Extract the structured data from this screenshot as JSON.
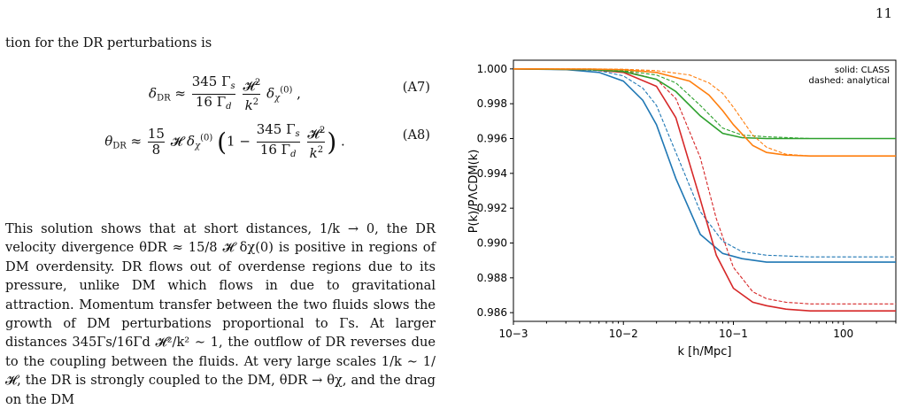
{
  "page_number": "11",
  "text": {
    "intro": "tion for the DR perturbations is",
    "eq_a7_label": "(A7)",
    "eq_a8_label": "(A8)",
    "paragraph": "This solution shows that at short distances, 1/k → 0, the DR velocity divergence θDR ≈ 15/8 𝓗 δχ(0) is positive in regions of DM overdensity. DR flows out of overdense regions due to its pressure, unlike DM which flows in due to gravitational attraction. Momentum transfer between the two fluids slows the growth of DM perturbations proportional to Γs. At larger distances 345Γs/16Γd 𝓗²/k² ∼ 1, the outflow of DR reverses due to the coupling between the fluids. At very large scales 1/k ∼ 1/𝓗, the DR is strongly coupled to the DM, θDR → θχ, and the drag on the DM"
  },
  "figure": {
    "legend_line1": "solid: CLASS",
    "legend_line2": "dashed: analytical",
    "xlabel": "k [h/Mpc]",
    "ylabel": "P(k)/PΛCDM(k)",
    "ytick_labels": [
      "1.000",
      "0.998",
      "0.996",
      "0.994",
      "0.992",
      "0.990",
      "0.988",
      "0.986"
    ],
    "xtick_labels": [
      "10−3",
      "10−2",
      "10−1",
      "100"
    ]
  },
  "chart_data": {
    "type": "line",
    "xscale": "log",
    "xlim": [
      0.001,
      3.0
    ],
    "ylim": [
      0.9855,
      1.0005
    ],
    "xlabel": "k [h/Mpc]",
    "ylabel": "P(k)/PΛCDM(k)",
    "legend_placement": "top-right",
    "grid": false,
    "series": [
      {
        "color": "#1f77b4",
        "style": "solid",
        "x": [
          0.001,
          0.003,
          0.006,
          0.01,
          0.015,
          0.02,
          0.03,
          0.05,
          0.08,
          0.12,
          0.2,
          0.5,
          1,
          3
        ],
        "y": [
          1.0,
          0.99996,
          0.9998,
          0.9993,
          0.9982,
          0.9968,
          0.9937,
          0.9905,
          0.9894,
          0.9891,
          0.9889,
          0.9889,
          0.9889,
          0.9889
        ]
      },
      {
        "color": "#1f77b4",
        "style": "dashed",
        "x": [
          0.001,
          0.003,
          0.006,
          0.01,
          0.015,
          0.02,
          0.03,
          0.05,
          0.08,
          0.12,
          0.2,
          0.5,
          1,
          3
        ],
        "y": [
          1.0,
          0.99998,
          0.9999,
          0.9996,
          0.9989,
          0.9979,
          0.9952,
          0.9918,
          0.9901,
          0.9895,
          0.9893,
          0.9892,
          0.9892,
          0.9892
        ]
      },
      {
        "color": "#d62728",
        "style": "solid",
        "x": [
          0.001,
          0.005,
          0.01,
          0.02,
          0.03,
          0.05,
          0.07,
          0.1,
          0.15,
          0.2,
          0.3,
          0.5,
          1,
          3
        ],
        "y": [
          1.0,
          0.99996,
          0.9998,
          0.999,
          0.9972,
          0.9925,
          0.9893,
          0.9874,
          0.9866,
          0.9864,
          0.9862,
          0.9861,
          0.9861,
          0.9861
        ]
      },
      {
        "color": "#d62728",
        "style": "dashed",
        "x": [
          0.001,
          0.005,
          0.01,
          0.02,
          0.03,
          0.05,
          0.07,
          0.1,
          0.15,
          0.2,
          0.3,
          0.5,
          1,
          3
        ],
        "y": [
          1.0,
          0.99998,
          0.9999,
          0.9994,
          0.9983,
          0.9949,
          0.9914,
          0.9886,
          0.9872,
          0.9868,
          0.9866,
          0.9865,
          0.9865,
          0.9865
        ]
      },
      {
        "color": "#2ca02c",
        "style": "solid",
        "x": [
          0.001,
          0.005,
          0.01,
          0.02,
          0.03,
          0.05,
          0.08,
          0.12,
          0.2,
          0.5,
          1,
          3
        ],
        "y": [
          1.0,
          0.99996,
          0.99985,
          0.9994,
          0.9987,
          0.9973,
          0.9963,
          0.99605,
          0.996,
          0.996,
          0.996,
          0.996
        ]
      },
      {
        "color": "#2ca02c",
        "style": "dashed",
        "x": [
          0.001,
          0.005,
          0.01,
          0.02,
          0.03,
          0.05,
          0.08,
          0.12,
          0.2,
          0.5,
          1,
          3
        ],
        "y": [
          1.0,
          0.99998,
          0.9999,
          0.99965,
          0.9992,
          0.9979,
          0.9966,
          0.9962,
          0.9961,
          0.996,
          0.996,
          0.996
        ]
      },
      {
        "color": "#ff7f0e",
        "style": "solid",
        "x": [
          0.001,
          0.005,
          0.01,
          0.02,
          0.04,
          0.06,
          0.08,
          0.1,
          0.15,
          0.2,
          0.3,
          0.5,
          1,
          3
        ],
        "y": [
          1.0,
          0.99999,
          0.99995,
          0.9998,
          0.9993,
          0.9985,
          0.9976,
          0.9968,
          0.9956,
          0.9952,
          0.99505,
          0.995,
          0.995,
          0.995
        ]
      },
      {
        "color": "#ff7f0e",
        "style": "dashed",
        "x": [
          0.001,
          0.005,
          0.01,
          0.02,
          0.04,
          0.06,
          0.08,
          0.1,
          0.15,
          0.2,
          0.3,
          0.5,
          1,
          3
        ],
        "y": [
          1.0,
          1.0,
          0.99998,
          0.9999,
          0.99965,
          0.9992,
          0.9986,
          0.9978,
          0.9962,
          0.9955,
          0.9951,
          0.995,
          0.995,
          0.995
        ]
      }
    ]
  }
}
